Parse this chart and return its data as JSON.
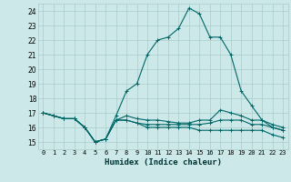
{
  "xlabel": "Humidex (Indice chaleur)",
  "bg_color": "#cce8e8",
  "grid_color": "#aacccc",
  "line_color": "#006666",
  "xlim": [
    -0.5,
    23.5
  ],
  "ylim": [
    14.5,
    24.5
  ],
  "yticks": [
    15,
    16,
    17,
    18,
    19,
    20,
    21,
    22,
    23,
    24
  ],
  "xticks": [
    0,
    1,
    2,
    3,
    4,
    5,
    6,
    7,
    8,
    9,
    10,
    11,
    12,
    13,
    14,
    15,
    16,
    17,
    18,
    19,
    20,
    21,
    22,
    23
  ],
  "series": [
    [
      17.0,
      16.8,
      16.6,
      16.6,
      16.0,
      15.0,
      15.2,
      16.8,
      18.5,
      19.0,
      21.0,
      22.0,
      22.2,
      22.8,
      24.2,
      23.8,
      22.2,
      22.2,
      21.0,
      18.5,
      17.5,
      16.5,
      16.0,
      15.8
    ],
    [
      17.0,
      16.8,
      16.6,
      16.6,
      16.0,
      15.0,
      15.2,
      16.5,
      16.8,
      16.6,
      16.5,
      16.5,
      16.4,
      16.3,
      16.3,
      16.5,
      16.5,
      17.2,
      17.0,
      16.8,
      16.5,
      16.5,
      16.2,
      16.0
    ],
    [
      17.0,
      16.8,
      16.6,
      16.6,
      16.0,
      15.0,
      15.2,
      16.5,
      16.5,
      16.3,
      16.2,
      16.2,
      16.2,
      16.2,
      16.2,
      16.2,
      16.3,
      16.5,
      16.5,
      16.5,
      16.2,
      16.2,
      16.0,
      15.8
    ],
    [
      17.0,
      16.8,
      16.6,
      16.6,
      16.0,
      15.0,
      15.2,
      16.5,
      16.5,
      16.3,
      16.0,
      16.0,
      16.0,
      16.0,
      16.0,
      15.8,
      15.8,
      15.8,
      15.8,
      15.8,
      15.8,
      15.8,
      15.5,
      15.3
    ]
  ]
}
